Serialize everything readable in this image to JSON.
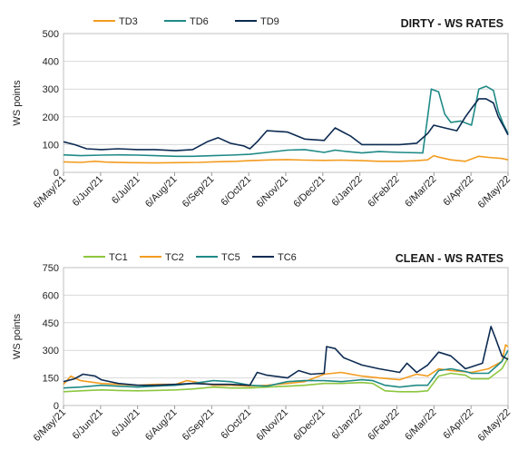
{
  "chart_data": [
    {
      "type": "line",
      "title": "DIRTY - WS RATES",
      "ylabel": "WS points",
      "xlabel": "",
      "ylim": [
        0,
        500
      ],
      "yticks": [
        0,
        100,
        200,
        300,
        400,
        500
      ],
      "xlim": [
        "2021-05-06",
        "2022-05-06"
      ],
      "xticks": [
        "6/May/21",
        "6/Jun/21",
        "6/Jul/21",
        "6/Aug/21",
        "6/Sep/21",
        "6/Oct/21",
        "6/Nov/21",
        "6/Dec/21",
        "6/Jan/22",
        "6/Feb/22",
        "6/Mar/22",
        "6/Apr/22",
        "6/May/22"
      ],
      "grid": "horizontal",
      "legend": "top-left",
      "series": [
        {
          "name": "TD3",
          "color": "#f39c1f",
          "points": [
            [
              "2021-05-06",
              38
            ],
            [
              "2021-05-20",
              36
            ],
            [
              "2021-06-01",
              40
            ],
            [
              "2021-06-10",
              37
            ],
            [
              "2021-07-01",
              35
            ],
            [
              "2021-07-20",
              34
            ],
            [
              "2021-08-06",
              35
            ],
            [
              "2021-08-25",
              36
            ],
            [
              "2021-09-06",
              38
            ],
            [
              "2021-09-25",
              40
            ],
            [
              "2021-10-06",
              42
            ],
            [
              "2021-10-25",
              45
            ],
            [
              "2021-11-06",
              46
            ],
            [
              "2021-11-20",
              44
            ],
            [
              "2021-12-06",
              43
            ],
            [
              "2021-12-20",
              44
            ],
            [
              "2022-01-06",
              42
            ],
            [
              "2022-01-20",
              40
            ],
            [
              "2022-02-06",
              40
            ],
            [
              "2022-02-20",
              42
            ],
            [
              "2022-03-01",
              45
            ],
            [
              "2022-03-06",
              60
            ],
            [
              "2022-03-10",
              55
            ],
            [
              "2022-03-20",
              45
            ],
            [
              "2022-04-01",
              40
            ],
            [
              "2022-04-06",
              48
            ],
            [
              "2022-04-12",
              58
            ],
            [
              "2022-04-20",
              54
            ],
            [
              "2022-05-01",
              50
            ],
            [
              "2022-05-06",
              45
            ]
          ]
        },
        {
          "name": "TD6",
          "color": "#1f8a86",
          "points": [
            [
              "2021-05-06",
              63
            ],
            [
              "2021-05-20",
              60
            ],
            [
              "2021-06-06",
              62
            ],
            [
              "2021-06-20",
              63
            ],
            [
              "2021-07-06",
              62
            ],
            [
              "2021-07-20",
              60
            ],
            [
              "2021-08-06",
              58
            ],
            [
              "2021-08-20",
              58
            ],
            [
              "2021-09-06",
              60
            ],
            [
              "2021-09-20",
              62
            ],
            [
              "2021-10-06",
              65
            ],
            [
              "2021-10-20",
              72
            ],
            [
              "2021-11-06",
              80
            ],
            [
              "2021-11-20",
              82
            ],
            [
              "2021-12-06",
              72
            ],
            [
              "2021-12-15",
              80
            ],
            [
              "2021-12-25",
              75
            ],
            [
              "2022-01-06",
              70
            ],
            [
              "2022-01-20",
              75
            ],
            [
              "2022-02-06",
              72
            ],
            [
              "2022-02-25",
              70
            ],
            [
              "2022-03-01",
              200
            ],
            [
              "2022-03-04",
              300
            ],
            [
              "2022-03-10",
              290
            ],
            [
              "2022-03-15",
              210
            ],
            [
              "2022-03-20",
              180
            ],
            [
              "2022-03-28",
              185
            ],
            [
              "2022-04-06",
              170
            ],
            [
              "2022-04-12",
              300
            ],
            [
              "2022-04-18",
              310
            ],
            [
              "2022-04-24",
              295
            ],
            [
              "2022-04-28",
              220
            ],
            [
              "2022-05-02",
              175
            ],
            [
              "2022-05-06",
              140
            ]
          ]
        },
        {
          "name": "TD9",
          "color": "#0d2b52",
          "points": [
            [
              "2021-05-06",
              110
            ],
            [
              "2021-05-15",
              100
            ],
            [
              "2021-05-25",
              85
            ],
            [
              "2021-06-06",
              82
            ],
            [
              "2021-06-20",
              85
            ],
            [
              "2021-07-06",
              82
            ],
            [
              "2021-07-20",
              82
            ],
            [
              "2021-08-06",
              78
            ],
            [
              "2021-08-20",
              82
            ],
            [
              "2021-09-01",
              110
            ],
            [
              "2021-09-10",
              125
            ],
            [
              "2021-09-20",
              105
            ],
            [
              "2021-10-01",
              95
            ],
            [
              "2021-10-06",
              85
            ],
            [
              "2021-10-12",
              110
            ],
            [
              "2021-10-20",
              150
            ],
            [
              "2021-11-06",
              145
            ],
            [
              "2021-11-20",
              120
            ],
            [
              "2021-12-06",
              115
            ],
            [
              "2021-12-15",
              160
            ],
            [
              "2021-12-28",
              130
            ],
            [
              "2022-01-06",
              100
            ],
            [
              "2022-01-20",
              100
            ],
            [
              "2022-02-06",
              100
            ],
            [
              "2022-02-20",
              105
            ],
            [
              "2022-03-01",
              140
            ],
            [
              "2022-03-06",
              170
            ],
            [
              "2022-03-15",
              160
            ],
            [
              "2022-03-25",
              150
            ],
            [
              "2022-04-01",
              200
            ],
            [
              "2022-04-06",
              230
            ],
            [
              "2022-04-12",
              265
            ],
            [
              "2022-04-18",
              265
            ],
            [
              "2022-04-24",
              250
            ],
            [
              "2022-04-28",
              200
            ],
            [
              "2022-05-03",
              160
            ],
            [
              "2022-05-06",
              135
            ]
          ]
        }
      ]
    },
    {
      "type": "line",
      "title": "CLEAN - WS RATES",
      "ylabel": "WS points",
      "xlabel": "",
      "ylim": [
        0,
        750
      ],
      "yticks": [
        0,
        150,
        300,
        450,
        600,
        750
      ],
      "xlim": [
        "2021-05-06",
        "2022-05-06"
      ],
      "xticks": [
        "6/May/21",
        "6/Jun/21",
        "6/Jul/21",
        "6/Aug/21",
        "6/Sep/21",
        "6/Oct/21",
        "6/Nov/21",
        "6/Dec/21",
        "6/Jan/22",
        "6/Feb/22",
        "6/Mar/22",
        "6/Apr/22",
        "6/May/22"
      ],
      "grid": "horizontal",
      "legend": "top-left",
      "series": [
        {
          "name": "TC1",
          "color": "#8dc63f",
          "points": [
            [
              "2021-05-06",
              75
            ],
            [
              "2021-05-20",
              80
            ],
            [
              "2021-06-06",
              85
            ],
            [
              "2021-06-20",
              82
            ],
            [
              "2021-07-06",
              80
            ],
            [
              "2021-07-20",
              82
            ],
            [
              "2021-08-06",
              85
            ],
            [
              "2021-08-20",
              90
            ],
            [
              "2021-09-06",
              100
            ],
            [
              "2021-09-20",
              95
            ],
            [
              "2021-10-06",
              95
            ],
            [
              "2021-10-20",
              100
            ],
            [
              "2021-11-06",
              105
            ],
            [
              "2021-11-20",
              110
            ],
            [
              "2021-12-06",
              120
            ],
            [
              "2021-12-20",
              120
            ],
            [
              "2022-01-06",
              125
            ],
            [
              "2022-01-15",
              120
            ],
            [
              "2022-01-25",
              80
            ],
            [
              "2022-02-06",
              75
            ],
            [
              "2022-02-20",
              75
            ],
            [
              "2022-03-01",
              80
            ],
            [
              "2022-03-10",
              160
            ],
            [
              "2022-03-20",
              175
            ],
            [
              "2022-04-01",
              165
            ],
            [
              "2022-04-06",
              145
            ],
            [
              "2022-04-20",
              145
            ],
            [
              "2022-05-01",
              200
            ],
            [
              "2022-05-06",
              260
            ]
          ]
        },
        {
          "name": "TC2",
          "color": "#f39c1f",
          "points": [
            [
              "2021-05-06",
              115
            ],
            [
              "2021-05-12",
              160
            ],
            [
              "2021-05-20",
              135
            ],
            [
              "2021-06-06",
              120
            ],
            [
              "2021-06-20",
              115
            ],
            [
              "2021-07-06",
              110
            ],
            [
              "2021-07-20",
              115
            ],
            [
              "2021-08-06",
              115
            ],
            [
              "2021-08-15",
              135
            ],
            [
              "2021-08-25",
              125
            ],
            [
              "2021-09-06",
              110
            ],
            [
              "2021-09-20",
              110
            ],
            [
              "2021-10-06",
              105
            ],
            [
              "2021-10-20",
              110
            ],
            [
              "2021-11-06",
              120
            ],
            [
              "2021-11-20",
              130
            ],
            [
              "2021-12-06",
              170
            ],
            [
              "2021-12-20",
              180
            ],
            [
              "2022-01-06",
              160
            ],
            [
              "2022-01-20",
              150
            ],
            [
              "2022-02-06",
              140
            ],
            [
              "2022-02-20",
              170
            ],
            [
              "2022-03-01",
              160
            ],
            [
              "2022-03-10",
              200
            ],
            [
              "2022-03-20",
              190
            ],
            [
              "2022-04-06",
              180
            ],
            [
              "2022-04-20",
              200
            ],
            [
              "2022-05-01",
              240
            ],
            [
              "2022-05-04",
              330
            ],
            [
              "2022-05-06",
              320
            ]
          ]
        },
        {
          "name": "TC5",
          "color": "#1f8a86",
          "points": [
            [
              "2021-05-06",
              95
            ],
            [
              "2021-05-20",
              100
            ],
            [
              "2021-06-06",
              110
            ],
            [
              "2021-06-20",
              105
            ],
            [
              "2021-07-06",
              100
            ],
            [
              "2021-07-20",
              105
            ],
            [
              "2021-08-06",
              110
            ],
            [
              "2021-08-20",
              120
            ],
            [
              "2021-09-06",
              135
            ],
            [
              "2021-09-20",
              130
            ],
            [
              "2021-10-06",
              110
            ],
            [
              "2021-10-20",
              105
            ],
            [
              "2021-11-06",
              130
            ],
            [
              "2021-11-20",
              135
            ],
            [
              "2021-12-06",
              135
            ],
            [
              "2021-12-20",
              130
            ],
            [
              "2022-01-06",
              140
            ],
            [
              "2022-01-15",
              135
            ],
            [
              "2022-01-25",
              110
            ],
            [
              "2022-02-06",
              100
            ],
            [
              "2022-02-20",
              110
            ],
            [
              "2022-03-01",
              110
            ],
            [
              "2022-03-10",
              190
            ],
            [
              "2022-03-20",
              200
            ],
            [
              "2022-04-01",
              185
            ],
            [
              "2022-04-06",
              175
            ],
            [
              "2022-04-20",
              175
            ],
            [
              "2022-05-01",
              240
            ],
            [
              "2022-05-06",
              300
            ]
          ]
        },
        {
          "name": "TC6",
          "color": "#0d2b52",
          "points": [
            [
              "2021-05-06",
              130
            ],
            [
              "2021-05-15",
              145
            ],
            [
              "2021-05-22",
              170
            ],
            [
              "2021-06-01",
              160
            ],
            [
              "2021-06-06",
              140
            ],
            [
              "2021-06-20",
              120
            ],
            [
              "2021-07-06",
              110
            ],
            [
              "2021-07-20",
              110
            ],
            [
              "2021-08-06",
              115
            ],
            [
              "2021-08-20",
              120
            ],
            [
              "2021-09-06",
              115
            ],
            [
              "2021-09-20",
              115
            ],
            [
              "2021-10-06",
              110
            ],
            [
              "2021-10-12",
              180
            ],
            [
              "2021-10-20",
              165
            ],
            [
              "2021-11-06",
              150
            ],
            [
              "2021-11-15",
              190
            ],
            [
              "2021-11-25",
              170
            ],
            [
              "2021-12-06",
              175
            ],
            [
              "2021-12-08",
              320
            ],
            [
              "2021-12-15",
              310
            ],
            [
              "2021-12-22",
              260
            ],
            [
              "2022-01-06",
              220
            ],
            [
              "2022-01-20",
              200
            ],
            [
              "2022-02-06",
              180
            ],
            [
              "2022-02-12",
              230
            ],
            [
              "2022-02-20",
              180
            ],
            [
              "2022-03-01",
              220
            ],
            [
              "2022-03-10",
              290
            ],
            [
              "2022-03-20",
              270
            ],
            [
              "2022-04-01",
              200
            ],
            [
              "2022-04-06",
              210
            ],
            [
              "2022-04-15",
              230
            ],
            [
              "2022-04-22",
              430
            ],
            [
              "2022-04-26",
              360
            ],
            [
              "2022-05-01",
              270
            ],
            [
              "2022-05-06",
              250
            ]
          ]
        }
      ]
    }
  ]
}
